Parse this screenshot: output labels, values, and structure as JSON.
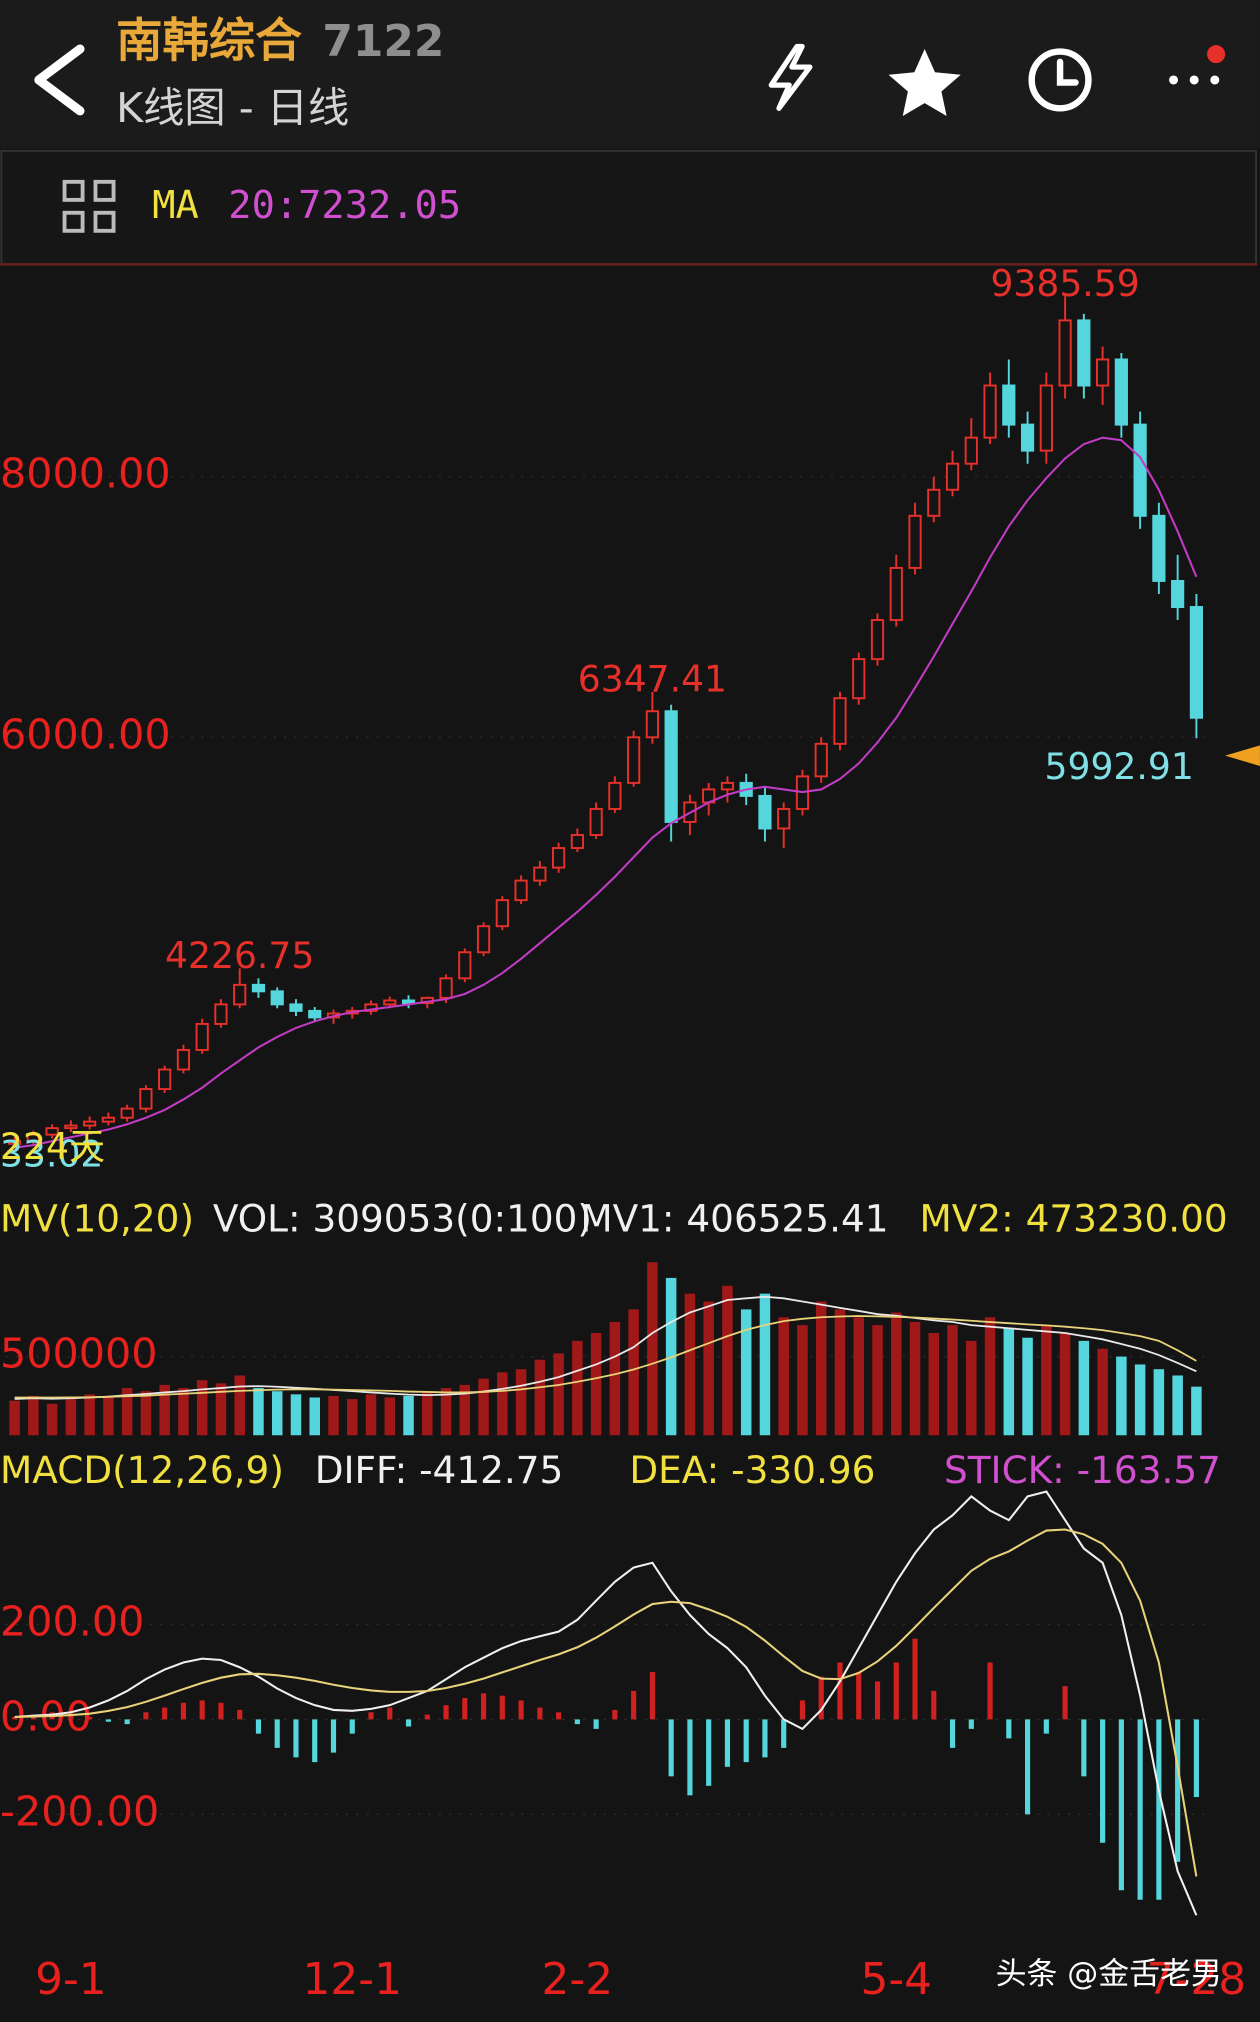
{
  "header": {
    "title": "南韩综合",
    "code": "7122",
    "subtitle": "K线图 - 日线",
    "ma_label": "MA",
    "ma_value": "20:7232.05",
    "watermark": "头条 @金舌老男"
  },
  "chart_data": [
    {
      "type": "candlestick",
      "categories": [
        null,
        null,
        null,
        "9-1",
        null,
        null,
        null,
        null,
        null,
        null,
        null,
        null,
        null,
        null,
        null,
        null,
        null,
        null,
        "12-1",
        null,
        null,
        null,
        null,
        null,
        null,
        null,
        null,
        null,
        null,
        null,
        "2-2",
        null,
        null,
        null,
        null,
        null,
        null,
        null,
        null,
        null,
        null,
        null,
        null,
        null,
        null,
        null,
        null,
        "5-4",
        null,
        null,
        null,
        null,
        null,
        null,
        null,
        null,
        null,
        null,
        null,
        null,
        null,
        null,
        null,
        "7-28"
      ],
      "open": [
        2880,
        2900,
        2950,
        3000,
        3020,
        3050,
        3080,
        3150,
        3300,
        3450,
        3600,
        3800,
        3950,
        4100,
        4050,
        3950,
        3900,
        3850,
        3880,
        3900,
        3950,
        3980,
        3960,
        4000,
        4150,
        4350,
        4550,
        4750,
        4900,
        5000,
        5150,
        5250,
        5450,
        5650,
        6000,
        6200,
        5350,
        5500,
        5600,
        5650,
        5550,
        5300,
        5450,
        5700,
        5950,
        6300,
        6600,
        6900,
        7300,
        7700,
        7900,
        8100,
        8300,
        8700,
        8400,
        8200,
        8700,
        9200,
        8700,
        8900,
        8400,
        7700,
        7200,
        7000
      ],
      "high": [
        2930,
        2980,
        3030,
        3060,
        3090,
        3120,
        3180,
        3330,
        3480,
        3640,
        3840,
        3990,
        4226.75,
        4150,
        4080,
        3990,
        3930,
        3910,
        3930,
        3980,
        4010,
        4020,
        4010,
        4180,
        4380,
        4580,
        4780,
        4940,
        5050,
        5190,
        5300,
        5500,
        5700,
        6050,
        6347.41,
        6250,
        5560,
        5650,
        5700,
        5720,
        5620,
        5500,
        5750,
        6000,
        6350,
        6650,
        6950,
        7400,
        7800,
        8000,
        8200,
        8450,
        8800,
        8900,
        8500,
        8800,
        9385.59,
        9250,
        9000,
        8950,
        8500,
        7800,
        7400,
        7100
      ],
      "low": [
        2850,
        2870,
        2920,
        2970,
        2990,
        3020,
        3050,
        3120,
        3270,
        3420,
        3570,
        3770,
        3920,
        4000,
        3920,
        3860,
        3820,
        3800,
        3840,
        3870,
        3920,
        3920,
        3920,
        3960,
        4120,
        4320,
        4520,
        4720,
        4860,
        4960,
        5120,
        5220,
        5420,
        5620,
        5950,
        5200,
        5250,
        5400,
        5500,
        5480,
        5200,
        5150,
        5400,
        5650,
        5900,
        6250,
        6550,
        6850,
        7250,
        7650,
        7850,
        8050,
        8250,
        8300,
        8100,
        8100,
        8600,
        8600,
        8550,
        8300,
        7600,
        7100,
        6900,
        5992.91
      ],
      "close": [
        2900,
        2950,
        3000,
        3020,
        3050,
        3080,
        3150,
        3300,
        3450,
        3600,
        3800,
        3950,
        4100,
        4050,
        3950,
        3900,
        3850,
        3880,
        3900,
        3950,
        3980,
        3960,
        4000,
        4150,
        4350,
        4550,
        4750,
        4900,
        5000,
        5150,
        5250,
        5450,
        5650,
        6000,
        6200,
        5350,
        5500,
        5600,
        5650,
        5550,
        5300,
        5450,
        5700,
        5950,
        6300,
        6600,
        6900,
        7300,
        7700,
        7900,
        8100,
        8300,
        8700,
        8400,
        8200,
        8700,
        9200,
        8700,
        8900,
        8400,
        7700,
        7200,
        7000,
        6150
      ],
      "ma": [
        2850,
        2870,
        2900,
        2930,
        2960,
        2990,
        3030,
        3080,
        3140,
        3220,
        3310,
        3420,
        3520,
        3620,
        3700,
        3770,
        3820,
        3860,
        3890,
        3910,
        3930,
        3950,
        3970,
        3990,
        4030,
        4100,
        4190,
        4300,
        4420,
        4540,
        4660,
        4790,
        4930,
        5080,
        5230,
        5340,
        5420,
        5500,
        5560,
        5600,
        5620,
        5600,
        5580,
        5600,
        5680,
        5800,
        5960,
        6150,
        6380,
        6620,
        6870,
        7120,
        7380,
        7620,
        7820,
        7990,
        8140,
        8250,
        8300,
        8280,
        8150,
        7900,
        7580,
        7232.05
      ],
      "up_color": "#e8302a",
      "down_color": "#54d6dc",
      "ma_color": "#c13bc4",
      "ylim": [
        2850,
        9630
      ],
      "yticks": [
        {
          "value": 8000,
          "label": "8000.00"
        },
        {
          "value": 6000,
          "label": "6000.00"
        }
      ],
      "range_low_label": "33.02",
      "days_label": "224天",
      "high_labels": [
        12,
        34,
        56
      ],
      "low_labels": [
        63
      ]
    },
    {
      "type": "bar",
      "values": [
        220000,
        250000,
        200000,
        230000,
        260000,
        240000,
        300000,
        280000,
        320000,
        300000,
        350000,
        330000,
        380000,
        300000,
        280000,
        260000,
        240000,
        250000,
        230000,
        260000,
        240000,
        250000,
        270000,
        300000,
        320000,
        360000,
        400000,
        420000,
        480000,
        520000,
        600000,
        650000,
        720000,
        800000,
        1100000,
        1000000,
        900000,
        850000,
        950000,
        800000,
        900000,
        750000,
        700000,
        850000,
        800000,
        750000,
        700000,
        780000,
        720000,
        650000,
        700000,
        600000,
        750000,
        680000,
        620000,
        700000,
        650000,
        600000,
        550000,
        500000,
        450000,
        420000,
        380000,
        309053
      ],
      "mv1": [
        230000,
        235000,
        232000,
        235000,
        240000,
        245000,
        255000,
        262000,
        272000,
        280000,
        292000,
        300000,
        310000,
        312000,
        308000,
        302000,
        295000,
        288000,
        280000,
        272000,
        265000,
        258000,
        255000,
        258000,
        265000,
        278000,
        295000,
        315000,
        340000,
        370000,
        410000,
        450000,
        500000,
        560000,
        650000,
        720000,
        780000,
        820000,
        860000,
        870000,
        880000,
        870000,
        850000,
        830000,
        810000,
        790000,
        770000,
        760000,
        745000,
        730000,
        720000,
        700000,
        690000,
        680000,
        670000,
        660000,
        650000,
        630000,
        610000,
        580000,
        550000,
        510000,
        460000,
        406525.41
      ],
      "mv2": [
        240000,
        240000,
        240000,
        241000,
        242000,
        244000,
        248000,
        252000,
        258000,
        264000,
        270000,
        276000,
        282000,
        286000,
        290000,
        292000,
        292000,
        290000,
        288000,
        285000,
        282000,
        278000,
        275000,
        272000,
        272000,
        275000,
        282000,
        292000,
        305000,
        320000,
        340000,
        362000,
        388000,
        418000,
        455000,
        495000,
        540000,
        585000,
        630000,
        670000,
        700000,
        725000,
        740000,
        750000,
        755000,
        758000,
        756000,
        752000,
        748000,
        742000,
        735000,
        728000,
        720000,
        712000,
        705000,
        698000,
        690000,
        680000,
        668000,
        650000,
        630000,
        600000,
        540000,
        473230
      ],
      "mv1_color": "#e8e8e8",
      "mv2_color": "#e8d27a",
      "ylim": [
        0,
        1213000
      ],
      "yticks": [
        {
          "value": 500000,
          "label": "500000"
        }
      ],
      "legend": [
        "MV(10,20)",
        "VOL: 309053(0:100)",
        "MV1: 406525.41",
        "MV2: 473230.00"
      ]
    },
    {
      "type": "macd",
      "diff": [
        5,
        8,
        10,
        15,
        25,
        40,
        60,
        85,
        105,
        120,
        128,
        125,
        110,
        90,
        65,
        45,
        30,
        20,
        18,
        22,
        30,
        45,
        60,
        85,
        110,
        130,
        150,
        165,
        175,
        185,
        210,
        250,
        290,
        320,
        330,
        270,
        220,
        180,
        150,
        110,
        50,
        0,
        -20,
        20,
        80,
        150,
        220,
        290,
        350,
        400,
        430,
        470,
        440,
        420,
        470,
        480,
        420,
        360,
        330,
        220,
        50,
        -150,
        -320,
        -412.75
      ],
      "dea": [
        5,
        6,
        7,
        9,
        12,
        18,
        26,
        37,
        50,
        64,
        77,
        88,
        95,
        96,
        93,
        88,
        81,
        73,
        66,
        61,
        58,
        58,
        60,
        66,
        75,
        86,
        99,
        112,
        125,
        137,
        152,
        172,
        196,
        221,
        243,
        248,
        245,
        232,
        216,
        195,
        166,
        133,
        102,
        86,
        85,
        98,
        122,
        155,
        194,
        235,
        274,
        313,
        338,
        354,
        377,
        398,
        400,
        390,
        370,
        330,
        250,
        120,
        -100,
        -330.96
      ],
      "stick": [
        5,
        10,
        15,
        10,
        5,
        -5,
        -10,
        15,
        25,
        35,
        40,
        35,
        20,
        -30,
        -60,
        -80,
        -90,
        -70,
        -30,
        15,
        25,
        -15,
        10,
        30,
        45,
        55,
        50,
        40,
        25,
        15,
        -10,
        -20,
        20,
        60,
        100,
        -120,
        -160,
        -140,
        -100,
        -90,
        -80,
        -60,
        40,
        90,
        120,
        100,
        80,
        120,
        170,
        60,
        -60,
        -20,
        120,
        -40,
        -200,
        -30,
        70,
        -120,
        -260,
        -360,
        -380,
        -380,
        -300,
        -163.57
      ],
      "diff_color": "#f0f0f0",
      "dea_color": "#e8d27a",
      "ylim": [
        -480,
        490
      ],
      "yticks": [
        {
          "value": 200,
          "label": "200.00"
        },
        {
          "value": 0,
          "label": "0.00"
        },
        {
          "value": -200,
          "label": "-200.00"
        }
      ],
      "legend": [
        "MACD(12,26,9)",
        "DIFF: -412.75",
        "DEA: -330.96",
        "STICK: -163.57"
      ]
    }
  ]
}
